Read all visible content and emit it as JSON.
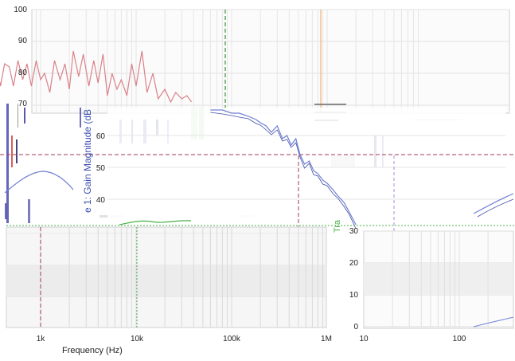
{
  "chart_data": [
    {
      "type": "line",
      "panel": "top-spectrum",
      "ylim": [
        70,
        100
      ],
      "yticks": [
        "100",
        "90",
        "80",
        "70"
      ],
      "xscale": "log",
      "colors": {
        "trace": "#d9828a",
        "marker_green": "#3a8f3a",
        "marker_orange": "#f2a05a"
      },
      "series": [
        {
          "x": [
            200,
            230,
            260,
            300,
            340,
            380,
            420,
            470,
            520,
            580,
            650,
            720,
            800,
            900,
            1000,
            1100,
            1250,
            1400,
            1600,
            1800,
            2000,
            2200,
            2500,
            2800,
            3200,
            3600,
            4000,
            4500,
            5000,
            5600,
            6300,
            7000,
            8000,
            9000,
            10000,
            11500,
            13000,
            15000,
            17000,
            20000,
            23000,
            26000,
            30000,
            34000,
            38000
          ],
          "values": [
            79,
            83,
            84,
            77,
            84,
            76,
            83,
            82,
            76,
            84,
            78,
            83,
            76,
            84,
            78,
            80,
            74,
            84,
            78,
            83,
            75,
            87,
            79,
            86,
            76,
            84,
            77,
            86,
            73,
            80,
            75,
            78,
            73,
            83,
            76,
            87,
            74,
            80,
            72,
            75,
            71,
            74,
            72,
            73,
            71
          ]
        }
      ]
    },
    {
      "type": "line",
      "panel": "gain-magnitude",
      "ylabel": "e 1: Gain Magnitude (dB",
      "yticks": [
        "60",
        "50",
        "40"
      ],
      "ylim": [
        30,
        70
      ],
      "colors": {
        "trace": "#6f7fd4",
        "reference": "#a03a50"
      },
      "series": [
        {
          "x": [
            60000,
            80000,
            100000,
            120000,
            150000,
            180000,
            200000,
            230000,
            260000,
            300000,
            340000,
            380000,
            420000,
            470000,
            520000,
            580000,
            650000,
            720000,
            800000,
            900000,
            1000000,
            1150000,
            1300000,
            1500000,
            1700000,
            2000000
          ],
          "values": [
            69,
            69,
            68,
            68,
            67,
            66,
            65,
            64,
            62,
            64,
            60,
            61,
            58,
            60,
            55,
            52,
            53,
            50,
            49,
            47,
            46,
            44,
            42,
            40,
            37,
            33
          ]
        }
      ]
    },
    {
      "type": "line",
      "panel": "bottom-left",
      "xlabel": "Frequency (Hz)",
      "xticks": [
        "1k",
        "10k",
        "100k",
        "1M"
      ],
      "xscale": "log",
      "colors": {
        "trace": "#6f7fd4",
        "green": "#49b049",
        "marker": "#a03a50"
      }
    },
    {
      "type": "line",
      "panel": "bottom-right",
      "ylabel_fragment": "Tra",
      "yticks": [
        "30",
        "20",
        "10",
        "0"
      ],
      "ylim": [
        0,
        30
      ],
      "xticks": [
        "10",
        "100"
      ],
      "xscale": "log",
      "colors": {
        "trace": "#6f7fd4",
        "marker": "#b585d6"
      }
    }
  ]
}
